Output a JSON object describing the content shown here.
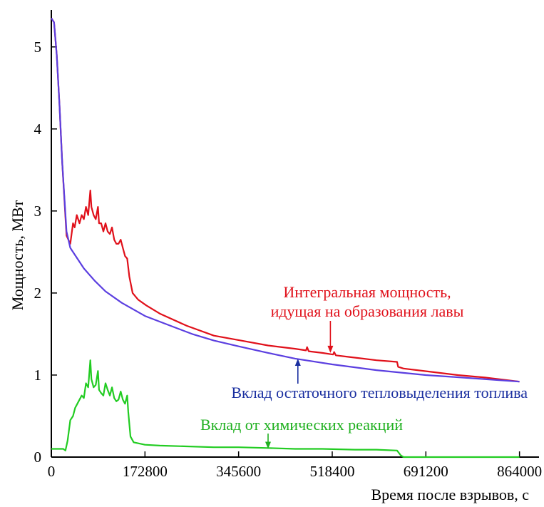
{
  "chart_data": {
    "type": "line",
    "xlabel": "Время после взрывов, с",
    "ylabel": "Мощность, МВт",
    "xlim": [
      0,
      900000
    ],
    "ylim": [
      0,
      5.45
    ],
    "xticks": [
      0,
      172800,
      345600,
      518400,
      691200,
      864000
    ],
    "xtick_labels": [
      "0",
      "172800",
      "345600",
      "518400",
      "691200",
      "864000"
    ],
    "yticks": [
      0,
      1,
      2,
      3,
      4,
      5
    ],
    "ytick_labels": [
      "0",
      "1",
      "2",
      "3",
      "4",
      "5"
    ],
    "grid": false,
    "legend": "none",
    "series": [
      {
        "key": "integral",
        "color": "#e0101a",
        "x": [
          0,
          5000,
          10000,
          15000,
          20000,
          28000,
          35000,
          40000,
          43000,
          47000,
          52000,
          56000,
          60000,
          64000,
          68000,
          72000,
          74000,
          78000,
          82000,
          86000,
          88000,
          92000,
          96000,
          100000,
          104000,
          108000,
          112000,
          116000,
          120000,
          124000,
          128000,
          132000,
          136000,
          140000,
          144000,
          150000,
          160000,
          175000,
          200000,
          250000,
          300000,
          350000,
          400000,
          450000,
          470000,
          472000,
          475000,
          500000,
          520000,
          522000,
          525000,
          550000,
          600000,
          638000,
          640000,
          650000,
          700000,
          750000,
          800000,
          864000
        ],
        "y": [
          5.35,
          5.3,
          4.9,
          4.3,
          3.6,
          2.7,
          2.6,
          2.85,
          2.8,
          2.95,
          2.85,
          2.95,
          2.9,
          3.05,
          2.95,
          3.25,
          3.05,
          2.95,
          2.9,
          3.05,
          2.85,
          2.85,
          2.75,
          2.85,
          2.75,
          2.72,
          2.8,
          2.65,
          2.6,
          2.6,
          2.65,
          2.55,
          2.45,
          2.42,
          2.2,
          2.0,
          1.92,
          1.85,
          1.75,
          1.6,
          1.48,
          1.42,
          1.36,
          1.32,
          1.3,
          1.34,
          1.29,
          1.27,
          1.25,
          1.28,
          1.24,
          1.22,
          1.18,
          1.16,
          1.1,
          1.08,
          1.04,
          1.0,
          0.97,
          0.92
        ]
      },
      {
        "key": "residual",
        "color": "#5b3fe0",
        "x": [
          0,
          5000,
          10000,
          15000,
          20000,
          28000,
          35000,
          45000,
          60000,
          80000,
          100000,
          130000,
          172800,
          220000,
          260000,
          300000,
          345600,
          400000,
          450000,
          518400,
          600000,
          691200,
          780000,
          864000
        ],
        "y": [
          5.35,
          5.3,
          4.9,
          4.3,
          3.6,
          2.75,
          2.55,
          2.45,
          2.3,
          2.15,
          2.02,
          1.88,
          1.72,
          1.6,
          1.5,
          1.42,
          1.35,
          1.27,
          1.2,
          1.13,
          1.06,
          1.0,
          0.96,
          0.92
        ]
      },
      {
        "key": "chemical",
        "color": "#22cc22",
        "x": [
          0,
          22000,
          26000,
          30000,
          35000,
          40000,
          44000,
          48000,
          52000,
          56000,
          60000,
          64000,
          68000,
          72000,
          74000,
          78000,
          82000,
          86000,
          88000,
          92000,
          96000,
          100000,
          104000,
          108000,
          112000,
          116000,
          120000,
          124000,
          128000,
          132000,
          136000,
          140000,
          142000,
          146000,
          152000,
          172800,
          200000,
          250000,
          300000,
          345600,
          400000,
          450000,
          500000,
          560000,
          600000,
          638000,
          645000,
          650000,
          700000,
          864000
        ],
        "y": [
          0.1,
          0.1,
          0.08,
          0.2,
          0.45,
          0.5,
          0.6,
          0.65,
          0.7,
          0.75,
          0.72,
          0.9,
          0.85,
          1.18,
          0.95,
          0.85,
          0.88,
          1.05,
          0.82,
          0.78,
          0.75,
          0.9,
          0.82,
          0.75,
          0.85,
          0.72,
          0.68,
          0.7,
          0.8,
          0.7,
          0.65,
          0.75,
          0.55,
          0.25,
          0.18,
          0.15,
          0.14,
          0.13,
          0.12,
          0.12,
          0.11,
          0.1,
          0.1,
          0.09,
          0.09,
          0.08,
          0.02,
          0,
          0,
          0
        ]
      }
    ],
    "annotations": [
      {
        "key": "integral",
        "lines": [
          "Интегральная мощность,",
          "идущая на образования лавы"
        ],
        "color": "#e0101a",
        "arrow_to": [
          515000,
          1.27
        ]
      },
      {
        "key": "residual",
        "lines": [
          "Вклад остаточного тепловыделения топлива"
        ],
        "color": "#1a2fa0",
        "arrow_to": [
          455000,
          1.2
        ]
      },
      {
        "key": "chemical",
        "lines": [
          "Вклад от химических реакций"
        ],
        "color": "#20b020",
        "arrow_to": [
          400000,
          0.1
        ]
      }
    ]
  }
}
